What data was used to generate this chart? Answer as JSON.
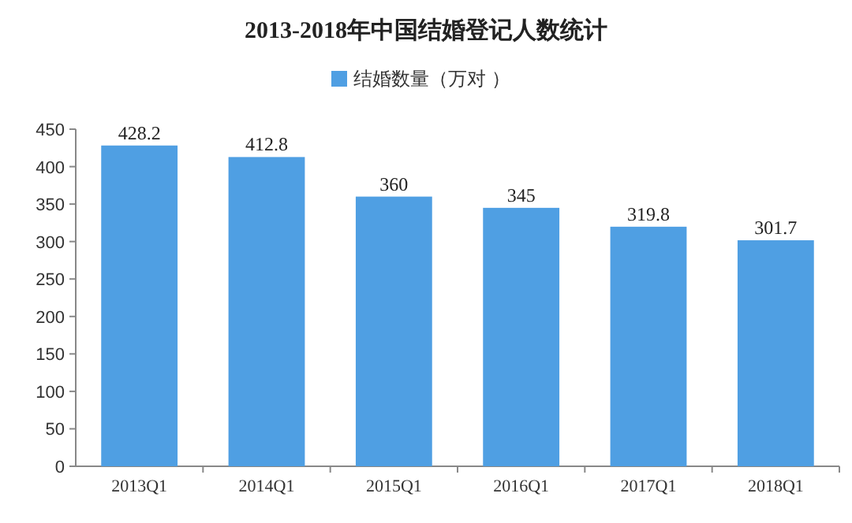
{
  "chart_data": {
    "type": "bar",
    "title": "2013-2018年中国结婚登记人数统计",
    "categories": [
      "2013Q1",
      "2014Q1",
      "2015Q1",
      "2016Q1",
      "2017Q1",
      "2018Q1"
    ],
    "series": [
      {
        "name": "结婚数量（万对 ）",
        "color": "#4f9fe3",
        "values": [
          428.2,
          412.8,
          360,
          345,
          319.8,
          301.7
        ]
      }
    ],
    "ylim": [
      0,
      450
    ],
    "yticks": [
      0,
      50,
      100,
      150,
      200,
      250,
      300,
      350,
      400,
      450
    ],
    "data_labels": true,
    "legend": "top",
    "grid": false
  }
}
